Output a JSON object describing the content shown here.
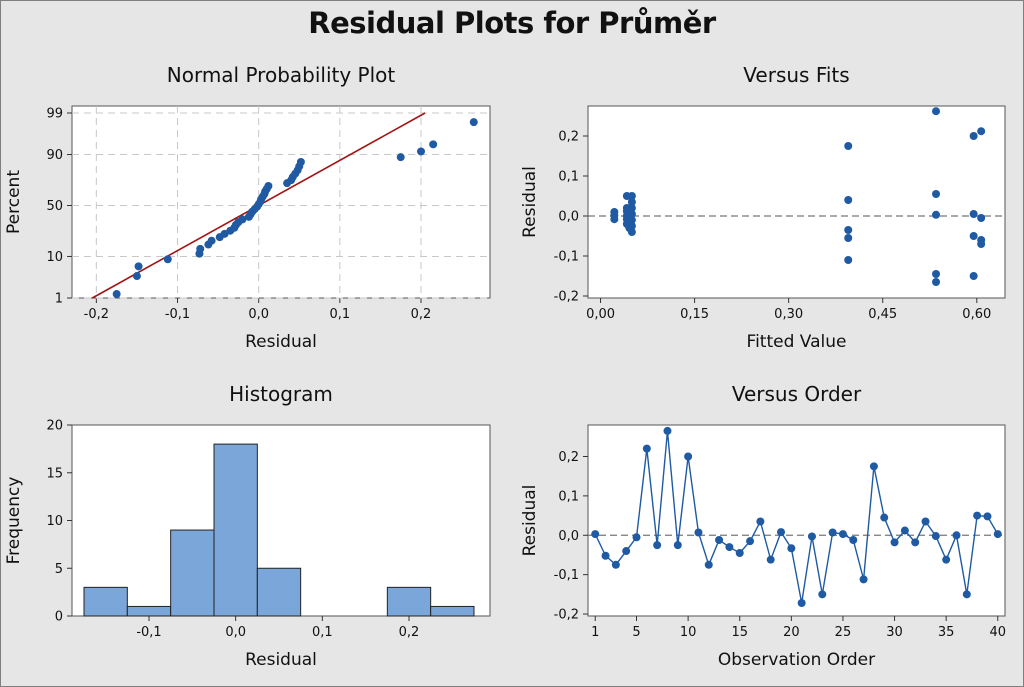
{
  "title": "Residual Plots for Průměr",
  "colors": {
    "marker": "#1f5aa3",
    "fit_line": "#a31515",
    "bar_fill": "#7aa6d9",
    "reference": "#777777",
    "grid": "#c8c8c8"
  },
  "chart_data": [
    {
      "type": "scatter",
      "title": "Normal Probability Plot",
      "xlabel": "Residual",
      "ylabel": "Percent",
      "xlim": [
        -0.23,
        0.285
      ],
      "x_ticks": [
        -0.2,
        -0.1,
        0.0,
        0.1,
        0.2
      ],
      "x_tick_labels": [
        "-0,2",
        "-0,1",
        "0,0",
        "0,1",
        "0,2"
      ],
      "y_ticks": [
        1,
        10,
        50,
        90,
        99
      ],
      "y_tick_labels": [
        "1",
        "10",
        "50",
        "90",
        "99"
      ],
      "y_scale": "normal-probability",
      "grid": true,
      "fit_line": {
        "x": [
          -0.205,
          0.205
        ],
        "percent": [
          1,
          99
        ]
      },
      "points": [
        {
          "x": -0.175,
          "percent": 1.3
        },
        {
          "x": -0.15,
          "percent": 3.8
        },
        {
          "x": -0.148,
          "percent": 6.3
        },
        {
          "x": -0.112,
          "percent": 8.8
        },
        {
          "x": -0.073,
          "percent": 11.3
        },
        {
          "x": -0.072,
          "percent": 13.8
        },
        {
          "x": -0.062,
          "percent": 16.3
        },
        {
          "x": -0.058,
          "percent": 18.8
        },
        {
          "x": -0.048,
          "percent": 21.3
        },
        {
          "x": -0.042,
          "percent": 23.8
        },
        {
          "x": -0.035,
          "percent": 26.3
        },
        {
          "x": -0.03,
          "percent": 28.8
        },
        {
          "x": -0.028,
          "percent": 31.3
        },
        {
          "x": -0.025,
          "percent": 33.8
        },
        {
          "x": -0.02,
          "percent": 36.3
        },
        {
          "x": -0.012,
          "percent": 38.8
        },
        {
          "x": -0.01,
          "percent": 41.3
        },
        {
          "x": -0.008,
          "percent": 43.8
        },
        {
          "x": -0.005,
          "percent": 46.3
        },
        {
          "x": -0.002,
          "percent": 48.8
        },
        {
          "x": 0.0,
          "percent": 51.3
        },
        {
          "x": 0.002,
          "percent": 53.8
        },
        {
          "x": 0.003,
          "percent": 56.3
        },
        {
          "x": 0.005,
          "percent": 58.8
        },
        {
          "x": 0.007,
          "percent": 61.3
        },
        {
          "x": 0.008,
          "percent": 63.8
        },
        {
          "x": 0.01,
          "percent": 66.3
        },
        {
          "x": 0.012,
          "percent": 68.8
        },
        {
          "x": 0.035,
          "percent": 71.3
        },
        {
          "x": 0.04,
          "percent": 73.8
        },
        {
          "x": 0.042,
          "percent": 76.3
        },
        {
          "x": 0.045,
          "percent": 78.8
        },
        {
          "x": 0.048,
          "percent": 81.3
        },
        {
          "x": 0.05,
          "percent": 83.8
        },
        {
          "x": 0.052,
          "percent": 86.3
        },
        {
          "x": 0.175,
          "percent": 88.8
        },
        {
          "x": 0.2,
          "percent": 91.3
        },
        {
          "x": 0.215,
          "percent": 93.8
        },
        {
          "x": 0.265,
          "percent": 98.2
        }
      ]
    },
    {
      "type": "scatter",
      "title": "Versus Fits",
      "xlabel": "Fitted Value",
      "ylabel": "Residual",
      "xlim": [
        -0.02,
        0.645
      ],
      "ylim": [
        -0.205,
        0.275
      ],
      "x_ticks": [
        0.0,
        0.15,
        0.3,
        0.45,
        0.6
      ],
      "x_tick_labels": [
        "0,00",
        "0,15",
        "0,30",
        "0,45",
        "0,60"
      ],
      "y_ticks": [
        -0.2,
        -0.1,
        0.0,
        0.1,
        0.2
      ],
      "y_tick_labels": [
        "-0,2",
        "-0,1",
        "0,0",
        "0,1",
        "0,2"
      ],
      "reference_line": 0.0,
      "points": [
        {
          "x": 0.022,
          "y": 0.01
        },
        {
          "x": 0.022,
          "y": 0.002
        },
        {
          "x": 0.022,
          "y": -0.008
        },
        {
          "x": 0.042,
          "y": 0.05
        },
        {
          "x": 0.042,
          "y": 0.02
        },
        {
          "x": 0.042,
          "y": 0.012
        },
        {
          "x": 0.042,
          "y": 0.0
        },
        {
          "x": 0.042,
          "y": -0.008
        },
        {
          "x": 0.042,
          "y": -0.02
        },
        {
          "x": 0.05,
          "y": 0.05
        },
        {
          "x": 0.05,
          "y": 0.035
        },
        {
          "x": 0.05,
          "y": 0.02
        },
        {
          "x": 0.05,
          "y": 0.005
        },
        {
          "x": 0.05,
          "y": -0.01
        },
        {
          "x": 0.05,
          "y": -0.025
        },
        {
          "x": 0.05,
          "y": -0.04
        },
        {
          "x": 0.046,
          "y": 0.015
        },
        {
          "x": 0.046,
          "y": -0.03
        },
        {
          "x": 0.395,
          "y": 0.175
        },
        {
          "x": 0.395,
          "y": 0.04
        },
        {
          "x": 0.395,
          "y": -0.035
        },
        {
          "x": 0.395,
          "y": -0.055
        },
        {
          "x": 0.395,
          "y": -0.11
        },
        {
          "x": 0.535,
          "y": 0.262
        },
        {
          "x": 0.535,
          "y": 0.055
        },
        {
          "x": 0.535,
          "y": 0.003
        },
        {
          "x": 0.535,
          "y": -0.145
        },
        {
          "x": 0.535,
          "y": -0.165
        },
        {
          "x": 0.595,
          "y": 0.2
        },
        {
          "x": 0.595,
          "y": 0.005
        },
        {
          "x": 0.595,
          "y": -0.05
        },
        {
          "x": 0.595,
          "y": -0.15
        },
        {
          "x": 0.607,
          "y": 0.212
        },
        {
          "x": 0.607,
          "y": -0.005
        },
        {
          "x": 0.607,
          "y": -0.06
        },
        {
          "x": 0.607,
          "y": -0.07
        }
      ]
    },
    {
      "type": "bar",
      "title": "Histogram",
      "xlabel": "Residual",
      "ylabel": "Frequency",
      "bin_width": 0.05,
      "bin_centers": [
        -0.15,
        -0.1,
        -0.05,
        0.0,
        0.05,
        0.1,
        0.15,
        0.2,
        0.25
      ],
      "values": [
        3,
        1,
        9,
        18,
        5,
        0,
        0,
        3,
        1
      ],
      "xlim": [
        -0.175,
        0.275
      ],
      "ylim": [
        0,
        20
      ],
      "x_ticks": [
        -0.1,
        0.0,
        0.1,
        0.2
      ],
      "x_tick_labels": [
        "-0,1",
        "0,0",
        "0,1",
        "0,2"
      ],
      "y_ticks": [
        0,
        5,
        10,
        15,
        20
      ],
      "y_tick_labels": [
        "0",
        "5",
        "10",
        "15",
        "20"
      ]
    },
    {
      "type": "line",
      "title": "Versus Order",
      "xlabel": "Observation Order",
      "ylabel": "Residual",
      "xlim": [
        0.3,
        40.7
      ],
      "ylim": [
        -0.205,
        0.28
      ],
      "x_ticks": [
        1,
        5,
        10,
        15,
        20,
        25,
        30,
        35,
        40
      ],
      "x_tick_labels": [
        "1",
        "5",
        "10",
        "15",
        "20",
        "25",
        "30",
        "35",
        "40"
      ],
      "y_ticks": [
        -0.2,
        -0.1,
        0.0,
        0.1,
        0.2
      ],
      "y_tick_labels": [
        "-0,2",
        "-0,1",
        "0,0",
        "0,1",
        "0,2"
      ],
      "reference_line": 0.0,
      "x": [
        1,
        2,
        3,
        4,
        5,
        6,
        7,
        8,
        9,
        10,
        11,
        12,
        13,
        14,
        15,
        16,
        17,
        18,
        19,
        20,
        21,
        22,
        23,
        24,
        25,
        26,
        27,
        28,
        29,
        30,
        31,
        32,
        33,
        34,
        35,
        36,
        37,
        38,
        39,
        40
      ],
      "y": [
        0.003,
        -0.052,
        -0.075,
        -0.04,
        -0.005,
        0.22,
        -0.025,
        0.265,
        -0.025,
        0.2,
        0.007,
        -0.075,
        -0.012,
        -0.03,
        -0.045,
        -0.015,
        0.035,
        -0.062,
        0.008,
        -0.033,
        -0.172,
        -0.003,
        -0.15,
        0.007,
        0.003,
        -0.012,
        -0.112,
        0.175,
        0.045,
        -0.018,
        0.012,
        -0.018,
        0.035,
        -0.002,
        -0.062,
        0.0,
        -0.15,
        0.05,
        0.048,
        0.003
      ]
    }
  ]
}
